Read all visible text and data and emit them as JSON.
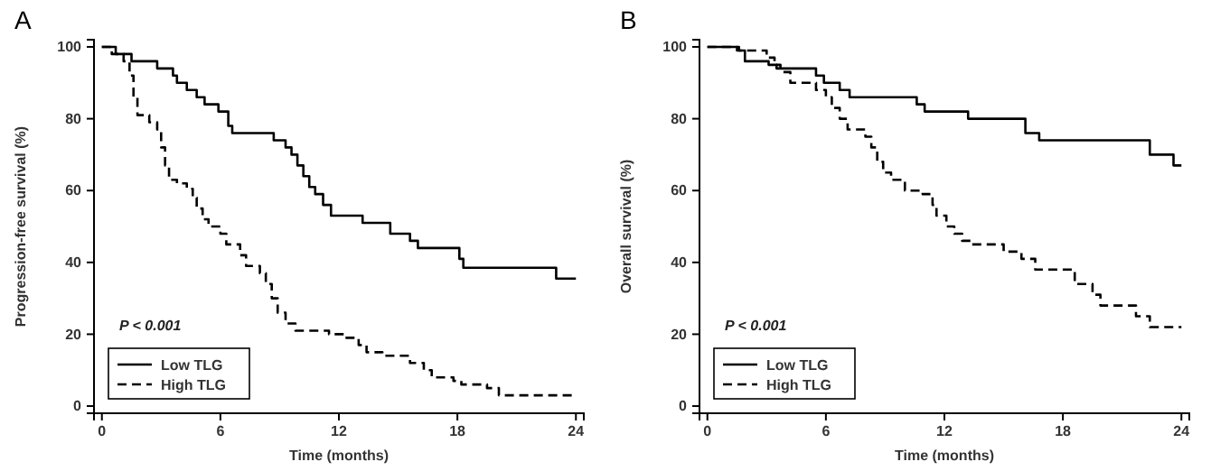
{
  "chart_data": [
    {
      "type": "step",
      "title": "A",
      "xlabel": "Time (months)",
      "ylabel": "Progression-free survival (%)",
      "xlim": [
        -0.4,
        24.4
      ],
      "ylim": [
        -2,
        102
      ],
      "xticks": [
        0,
        6,
        12,
        18,
        24
      ],
      "yticks": [
        0,
        20,
        40,
        60,
        80,
        100
      ],
      "grid": false,
      "legend": "bottom left",
      "annotations": [
        "P < 0.001"
      ],
      "series": [
        {
          "name": "Low TLG",
          "color": "#000000",
          "line_style": "solid",
          "x": [
            0,
            0.7,
            1.5,
            2.8,
            3.6,
            3.8,
            4.3,
            4.8,
            5.2,
            5.9,
            6.4,
            6.6,
            8.7,
            9.3,
            9.6,
            9.9,
            10.2,
            10.5,
            10.8,
            11.2,
            11.6,
            13.2,
            14.6,
            15.6,
            16.0,
            18.1,
            18.3,
            23.0,
            24
          ],
          "values": [
            100,
            98,
            96,
            94,
            92,
            90,
            88,
            86,
            84,
            82,
            78,
            76,
            74,
            72,
            70,
            67,
            64,
            61,
            59,
            56,
            53,
            51,
            48,
            46,
            44,
            41,
            38.5,
            35.5,
            35.5
          ]
        },
        {
          "name": "High TLG",
          "color": "#000000",
          "line_style": "dashed",
          "x": [
            0,
            0.5,
            1.1,
            1.4,
            1.6,
            1.8,
            2.4,
            2.8,
            3.0,
            3.2,
            3.4,
            3.8,
            4.3,
            4.6,
            4.8,
            5.1,
            5.4,
            6.0,
            6.3,
            7.0,
            7.3,
            8.0,
            8.3,
            8.6,
            8.9,
            9.3,
            9.8,
            11.5,
            12.3,
            13.0,
            13.4,
            14.2,
            15.6,
            16.3,
            16.7,
            17.8,
            18.2,
            19.5,
            20.1,
            24
          ],
          "values": [
            100,
            98,
            96,
            92,
            86,
            81,
            79,
            77,
            72,
            67,
            63,
            62,
            60.5,
            58,
            55,
            52,
            50,
            48,
            45,
            42,
            39,
            37,
            34,
            30,
            26,
            23,
            21,
            20,
            19,
            17,
            15,
            14,
            12,
            10,
            8,
            7,
            6,
            5,
            3,
            3
          ]
        }
      ]
    },
    {
      "type": "step",
      "title": "B",
      "xlabel": "Time (months)",
      "ylabel": "Overall survival (%)",
      "xlim": [
        -0.4,
        24.4
      ],
      "ylim": [
        -2,
        102
      ],
      "xticks": [
        0,
        6,
        12,
        18,
        24
      ],
      "yticks": [
        0,
        20,
        40,
        60,
        80,
        100
      ],
      "grid": false,
      "legend": "bottom left",
      "annotations": [
        "P < 0.001"
      ],
      "series": [
        {
          "name": "Low TLG",
          "color": "#000000",
          "line_style": "solid",
          "x": [
            0,
            1.5,
            1.9,
            3.1,
            3.5,
            5.5,
            5.9,
            6.7,
            7.2,
            10.6,
            11.0,
            13.2,
            16.1,
            16.8,
            22.4,
            23.6,
            24
          ],
          "values": [
            100,
            99,
            96,
            95,
            94,
            92,
            90,
            88,
            86,
            84,
            82,
            80,
            76,
            74,
            70,
            67,
            67
          ]
        },
        {
          "name": "High TLG",
          "color": "#000000",
          "line_style": "dashed",
          "x": [
            0,
            1.6,
            3.0,
            3.4,
            3.7,
            4.2,
            5.5,
            6.0,
            6.3,
            6.7,
            7.1,
            8.0,
            8.3,
            8.6,
            8.9,
            9.3,
            10.0,
            10.9,
            11.4,
            11.6,
            12.1,
            12.5,
            12.9,
            13.4,
            15.0,
            15.9,
            16.6,
            18.6,
            19.5,
            19.9,
            21.7,
            22.4,
            24
          ],
          "values": [
            100,
            99,
            97,
            95,
            93,
            90,
            88,
            86,
            83,
            80,
            77,
            75,
            72,
            68,
            65,
            63,
            60,
            59,
            56,
            53,
            50,
            48,
            46,
            45,
            43,
            41,
            38,
            34,
            31,
            28,
            25,
            22,
            22
          ]
        }
      ]
    }
  ]
}
